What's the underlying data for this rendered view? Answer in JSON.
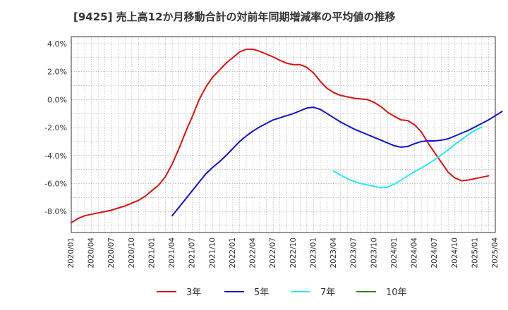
{
  "chart_data": {
    "type": "line",
    "title": "[9425]  売上高12か月移動合計の対前年同期増減率の平均値の推移",
    "xlabel": "",
    "ylabel": "",
    "ylim": [
      -9.5,
      4.5
    ],
    "y_ticks": [
      4,
      2,
      0,
      -2,
      -4,
      -6,
      -8
    ],
    "y_tick_labels": [
      "4.0%",
      "2.0%",
      "0.0%",
      "-2.0%",
      "-4.0%",
      "-6.0%",
      "-8.0%"
    ],
    "x_ticks": [
      "2020/01",
      "2020/04",
      "2020/07",
      "2020/10",
      "2021/01",
      "2021/04",
      "2021/07",
      "2021/10",
      "2022/01",
      "2022/04",
      "2022/07",
      "2022/10",
      "2023/01",
      "2023/04",
      "2023/07",
      "2023/10",
      "2024/01",
      "2024/04",
      "2024/07",
      "2024/10",
      "2025/01",
      "2025/04"
    ],
    "x_start": "2020/01",
    "x_end": "2025/04",
    "grid": true,
    "legend_position": "bottom",
    "series": [
      {
        "name": "3年",
        "color": "#dd1111",
        "start": "2020/01",
        "values": [
          -8.8,
          -8.5,
          -8.3,
          -8.2,
          -8.1,
          -8.0,
          -7.9,
          -7.75,
          -7.6,
          -7.4,
          -7.2,
          -6.9,
          -6.5,
          -6.1,
          -5.5,
          -4.6,
          -3.5,
          -2.3,
          -1.2,
          0.0,
          0.9,
          1.6,
          2.1,
          2.6,
          3.0,
          3.4,
          3.6,
          3.6,
          3.45,
          3.25,
          3.05,
          2.8,
          2.6,
          2.5,
          2.5,
          2.3,
          1.9,
          1.3,
          0.8,
          0.5,
          0.3,
          0.2,
          0.1,
          0.05,
          0.0,
          -0.2,
          -0.5,
          -0.9,
          -1.2,
          -1.45,
          -1.5,
          -1.8,
          -2.3,
          -3.1,
          -3.8,
          -4.5,
          -5.2,
          -5.6,
          -5.8,
          -5.75,
          -5.65,
          -5.55,
          -5.45
        ]
      },
      {
        "name": "5年",
        "color": "#1111cc",
        "start": "2021/04",
        "values": [
          -8.3,
          -7.7,
          -7.1,
          -6.5,
          -5.9,
          -5.3,
          -4.85,
          -4.45,
          -4.0,
          -3.5,
          -3.0,
          -2.6,
          -2.25,
          -1.95,
          -1.7,
          -1.45,
          -1.3,
          -1.15,
          -1.0,
          -0.8,
          -0.6,
          -0.55,
          -0.7,
          -1.0,
          -1.3,
          -1.6,
          -1.85,
          -2.1,
          -2.3,
          -2.5,
          -2.7,
          -2.9,
          -3.1,
          -3.3,
          -3.4,
          -3.35,
          -3.15,
          -3.0,
          -2.95,
          -2.95,
          -2.9,
          -2.8,
          -2.6,
          -2.4,
          -2.2,
          -1.95,
          -1.7,
          -1.45,
          -1.15,
          -0.85
        ]
      },
      {
        "name": "7年",
        "color": "#22eeee",
        "start": "2023/04",
        "values": [
          -5.1,
          -5.4,
          -5.65,
          -5.85,
          -6.0,
          -6.1,
          -6.2,
          -6.3,
          -6.25,
          -6.05,
          -5.75,
          -5.45,
          -5.15,
          -4.9,
          -4.6,
          -4.3,
          -3.95,
          -3.6,
          -3.2,
          -2.85,
          -2.5,
          -2.2,
          -1.95
        ]
      },
      {
        "name": "10年",
        "color": "#228822",
        "start": "2025/01",
        "values": []
      }
    ]
  }
}
